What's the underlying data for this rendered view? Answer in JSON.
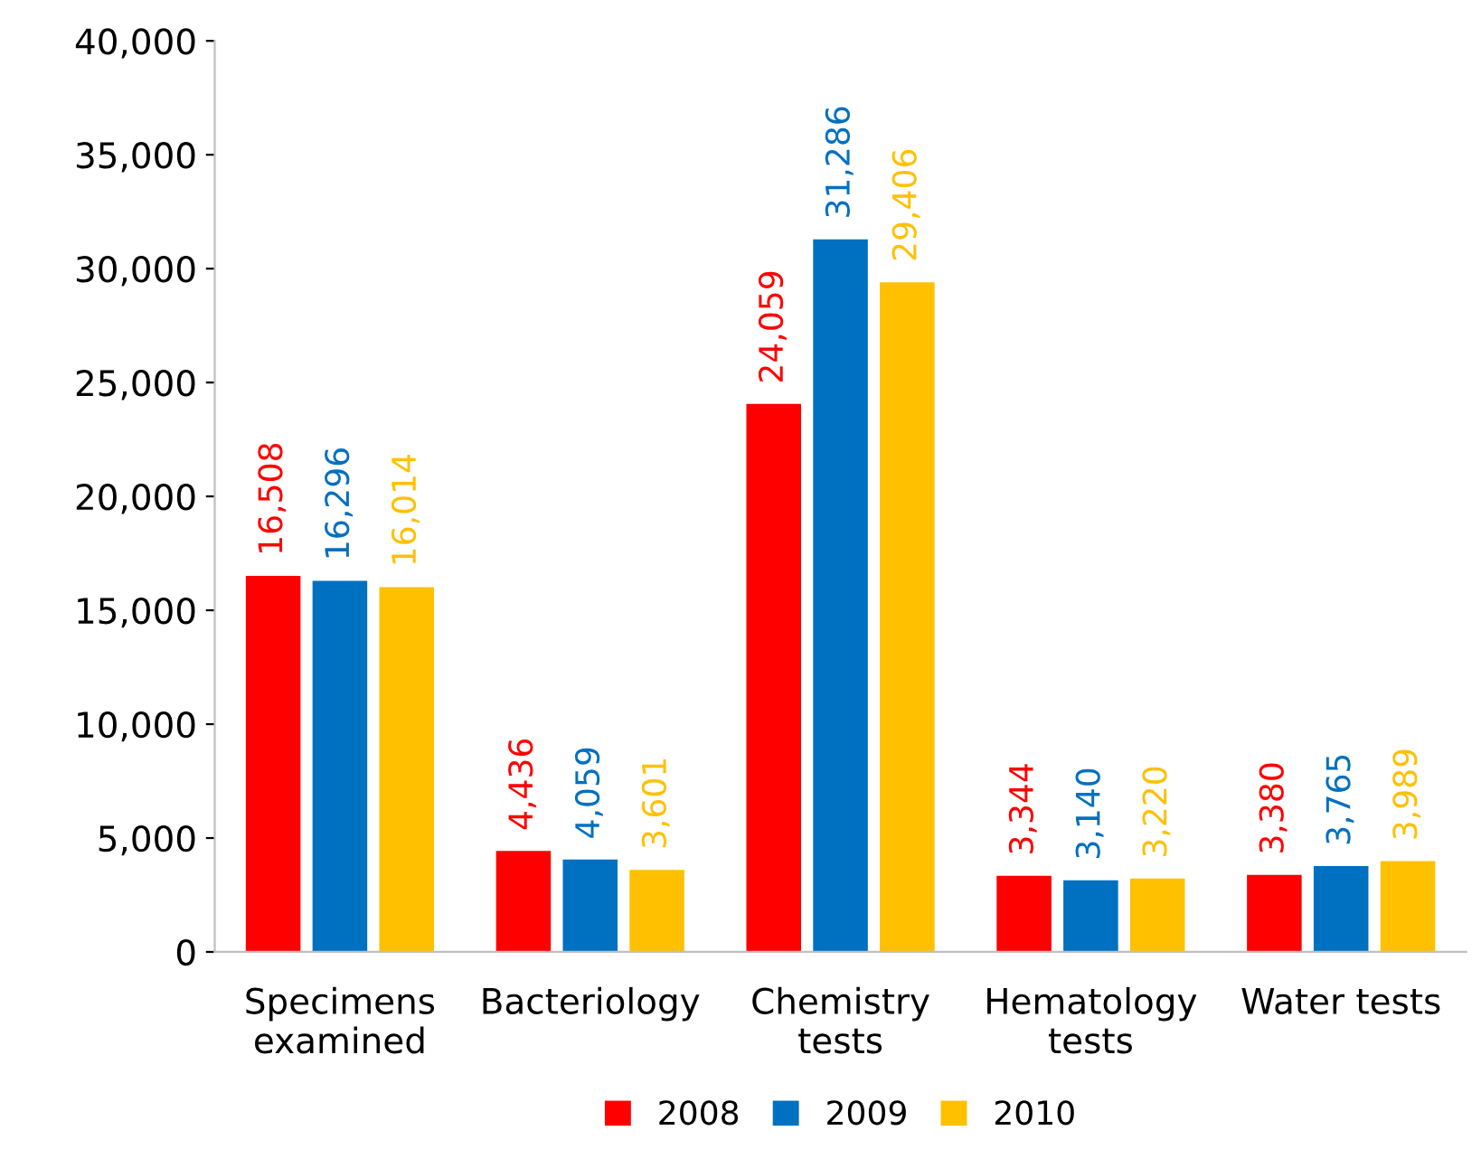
{
  "chart_data": {
    "type": "bar",
    "categories": [
      "Specimens\nexamined",
      "Bacteriology",
      "Chemistry\ntests",
      "Hematology\ntests",
      "Water tests"
    ],
    "series": [
      {
        "name": "2008",
        "color": "#ff0000",
        "values": [
          16508,
          4436,
          24059,
          3344,
          3380
        ],
        "value_labels": [
          "16,508",
          "4,436",
          "24,059",
          "3,344",
          "3,380"
        ]
      },
      {
        "name": "2009",
        "color": "#0070c0",
        "values": [
          16296,
          4059,
          31286,
          3140,
          3765
        ],
        "value_labels": [
          "16,296",
          "4,059",
          "31,286",
          "3,140",
          "3,765"
        ]
      },
      {
        "name": "2010",
        "color": "#ffc000",
        "values": [
          16014,
          3601,
          29406,
          3220,
          3989
        ],
        "value_labels": [
          "16,014",
          "3,601",
          "29,406",
          "3,220",
          "3,989"
        ]
      }
    ],
    "ylim": [
      0,
      40000
    ],
    "yticks": [
      0,
      {
        "value": 5000,
        "label": "5,000"
      },
      {
        "value": 10000,
        "label": "10,000"
      },
      {
        "value": 15000,
        "label": "15,000"
      },
      {
        "value": 20000,
        "label": "20,000"
      },
      {
        "value": 25000,
        "label": "25,000"
      },
      {
        "value": 30000,
        "label": "30,000"
      },
      {
        "value": 35000,
        "label": "35,000"
      },
      {
        "value": 40000,
        "label": "40,000"
      }
    ],
    "grid": false,
    "legend": "bottom"
  }
}
